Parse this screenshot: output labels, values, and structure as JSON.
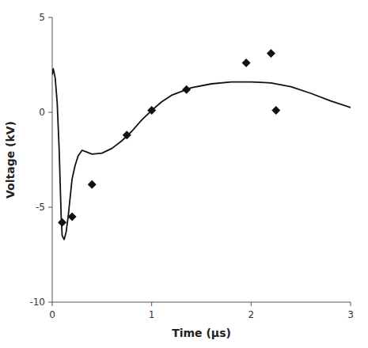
{
  "chart_data": {
    "type": "line",
    "xlabel": "Time (μs)",
    "ylabel": "Voltage (kV)",
    "series": [
      {
        "type": "line",
        "color": "#111111",
        "line_style": "solid",
        "x": [
          0.0,
          0.01,
          0.03,
          0.05,
          0.07,
          0.09,
          0.1,
          0.12,
          0.14,
          0.16,
          0.18,
          0.2,
          0.23,
          0.26,
          0.3,
          0.35,
          0.4,
          0.5,
          0.6,
          0.7,
          0.8,
          0.9,
          1.0,
          1.1,
          1.2,
          1.4,
          1.6,
          1.8,
          2.0,
          2.1,
          2.2,
          2.4,
          2.6,
          2.8,
          3.0
        ],
        "values": [
          2.0,
          2.3,
          1.8,
          0.5,
          -2.0,
          -5.5,
          -6.5,
          -6.7,
          -6.3,
          -5.5,
          -4.5,
          -3.5,
          -2.8,
          -2.3,
          -2.0,
          -2.1,
          -2.2,
          -2.15,
          -1.9,
          -1.5,
          -1.0,
          -0.4,
          0.1,
          0.55,
          0.9,
          1.3,
          1.5,
          1.6,
          1.6,
          1.58,
          1.55,
          1.35,
          1.0,
          0.6,
          0.25
        ]
      },
      {
        "type": "scatter",
        "color": "#111111",
        "marker": "diamond",
        "x": [
          0.1,
          0.2,
          0.4,
          0.75,
          1.0,
          1.35,
          1.95,
          2.2,
          2.25
        ],
        "values": [
          -5.8,
          -5.5,
          -3.8,
          -1.2,
          0.1,
          1.2,
          2.6,
          3.1,
          0.1
        ]
      }
    ],
    "xlim": [
      0,
      3
    ],
    "ylim": [
      -10,
      5
    ],
    "xticks": [
      0,
      1,
      2,
      3
    ],
    "yticks": [
      -10,
      -5,
      0,
      5
    ],
    "grid": false
  }
}
